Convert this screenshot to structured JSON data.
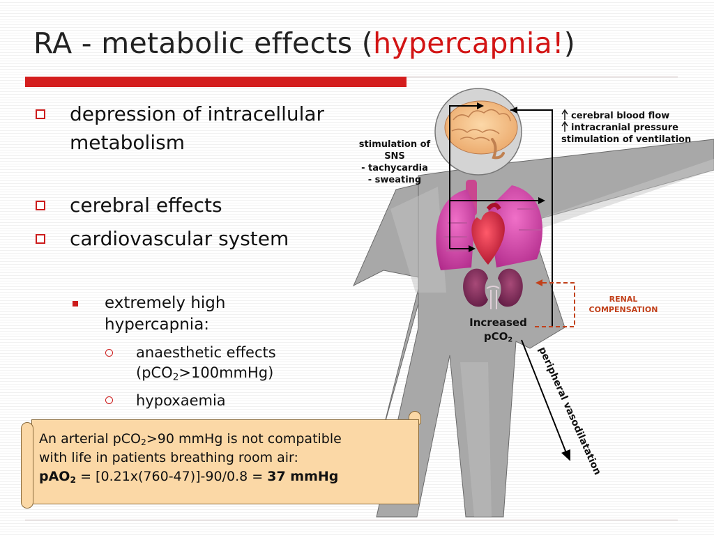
{
  "title": {
    "main": "RA - metabolic effects (",
    "highlight": "hypercapnia!",
    "close": ")"
  },
  "bullets": [
    "depression of intracellular metabolism",
    "cerebral effects",
    "cardiovascular system"
  ],
  "sub_bullet": "extremely high hypercapnia:",
  "sub_sub_bullets": {
    "anaesthetic_pre": "anaesthetic effects (pCO",
    "anaesthetic_sub": "2",
    "anaesthetic_post": ">100mmHg)",
    "hypoxaemia": "hypoxaemia"
  },
  "note": {
    "line1_pre": "An arterial pCO",
    "line1_sub": "2",
    "line1_post": ">90 mmHg is not compatible",
    "line2": "with life in patients breathing room air:",
    "line3_bold_pre": "pAO",
    "line3_sub": "2",
    "line3_mid": " = [0.21x(760-47)]-90/0.8 = ",
    "line3_result": "37 mmHg"
  },
  "diagram": {
    "sns": [
      "stimulation of",
      "SNS",
      "- tachycardia",
      "- sweating"
    ],
    "cerebral": [
      "cerebral blood flow",
      "intracranial pressure",
      "stimulation of ventilation"
    ],
    "renal": [
      "RENAL",
      "COMPENSATION"
    ],
    "increased_pre": "Increased",
    "increased_pco": "pCO",
    "increased_sub": "2",
    "vasodilatation": "peripheral vasodilatation"
  },
  "colors": {
    "accent": "#d21414",
    "note_bg": "#fbd8a6",
    "renal": "#c2401a",
    "body": "#a8a8a8"
  }
}
